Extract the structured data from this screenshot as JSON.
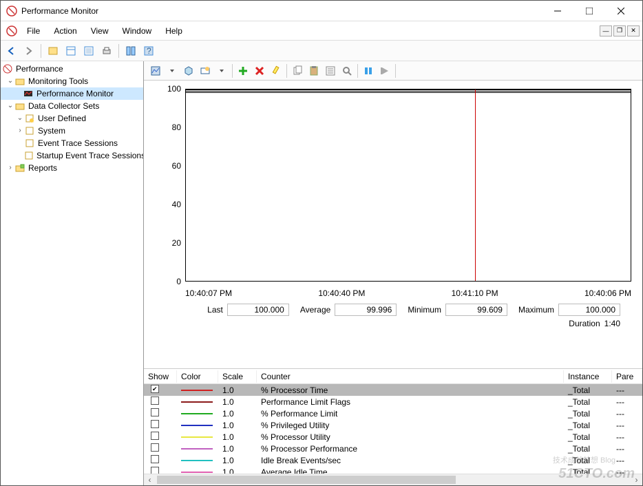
{
  "window": {
    "title": "Performance Monitor"
  },
  "menus": {
    "file": "File",
    "action": "Action",
    "view": "View",
    "window": "Window",
    "help": "Help"
  },
  "tree": {
    "root": "Performance",
    "monitoring": "Monitoring Tools",
    "perfmon": "Performance Monitor",
    "dcs": "Data Collector Sets",
    "userdef": "User Defined",
    "system": "System",
    "ets": "Event Trace Sessions",
    "startup": "Startup Event Trace Sessions",
    "reports": "Reports"
  },
  "chart": {
    "yticks": [
      "100",
      "80",
      "60",
      "40",
      "20",
      "0"
    ],
    "ytick_positions_pct": [
      0,
      20,
      40,
      60,
      80,
      100
    ],
    "ylim": [
      0,
      100
    ],
    "xlabels": [
      "10:40:07 PM",
      "10:40:40 PM",
      "10:41:10 PM",
      "10:40:06 PM"
    ],
    "cursor_pct": 65,
    "background_color": "#ffffff",
    "border_color": "#000000"
  },
  "stats": {
    "last_label": "Last",
    "last_value": "100.000",
    "avg_label": "Average",
    "avg_value": "99.996",
    "min_label": "Minimum",
    "min_value": "99.609",
    "max_label": "Maximum",
    "max_value": "100.000",
    "dur_label": "Duration",
    "dur_value": "1:40"
  },
  "columns": {
    "show": "Show",
    "color": "Color",
    "scale": "Scale",
    "counter": "Counter",
    "instance": "Instance",
    "parent": "Pare"
  },
  "rows": [
    {
      "checked": true,
      "color": "#d02020",
      "scale": "1.0",
      "counter": "% Processor Time",
      "instance": "_Total",
      "parent": "---",
      "selected": true
    },
    {
      "checked": false,
      "color": "#8b1a1a",
      "scale": "1.0",
      "counter": "Performance Limit Flags",
      "instance": "_Total",
      "parent": "---",
      "selected": false
    },
    {
      "checked": false,
      "color": "#1faa1f",
      "scale": "1.0",
      "counter": "% Performance Limit",
      "instance": "_Total",
      "parent": "---",
      "selected": false
    },
    {
      "checked": false,
      "color": "#2030c0",
      "scale": "1.0",
      "counter": "% Privileged Utility",
      "instance": "_Total",
      "parent": "---",
      "selected": false
    },
    {
      "checked": false,
      "color": "#e8e840",
      "scale": "1.0",
      "counter": "% Processor Utility",
      "instance": "_Total",
      "parent": "---",
      "selected": false
    },
    {
      "checked": false,
      "color": "#c060c0",
      "scale": "1.0",
      "counter": "% Processor Performance",
      "instance": "_Total",
      "parent": "---",
      "selected": false
    },
    {
      "checked": false,
      "color": "#20c0c0",
      "scale": "1.0",
      "counter": "Idle Break Events/sec",
      "instance": "_Total",
      "parent": "---",
      "selected": false
    },
    {
      "checked": false,
      "color": "#e060b0",
      "scale": "1.0",
      "counter": "Average Idle Time",
      "instance": "_Total",
      "parent": "---",
      "selected": false
    }
  ],
  "watermark": {
    "main": "51CTO.com",
    "sub": "技术成就梦想  Blog"
  }
}
